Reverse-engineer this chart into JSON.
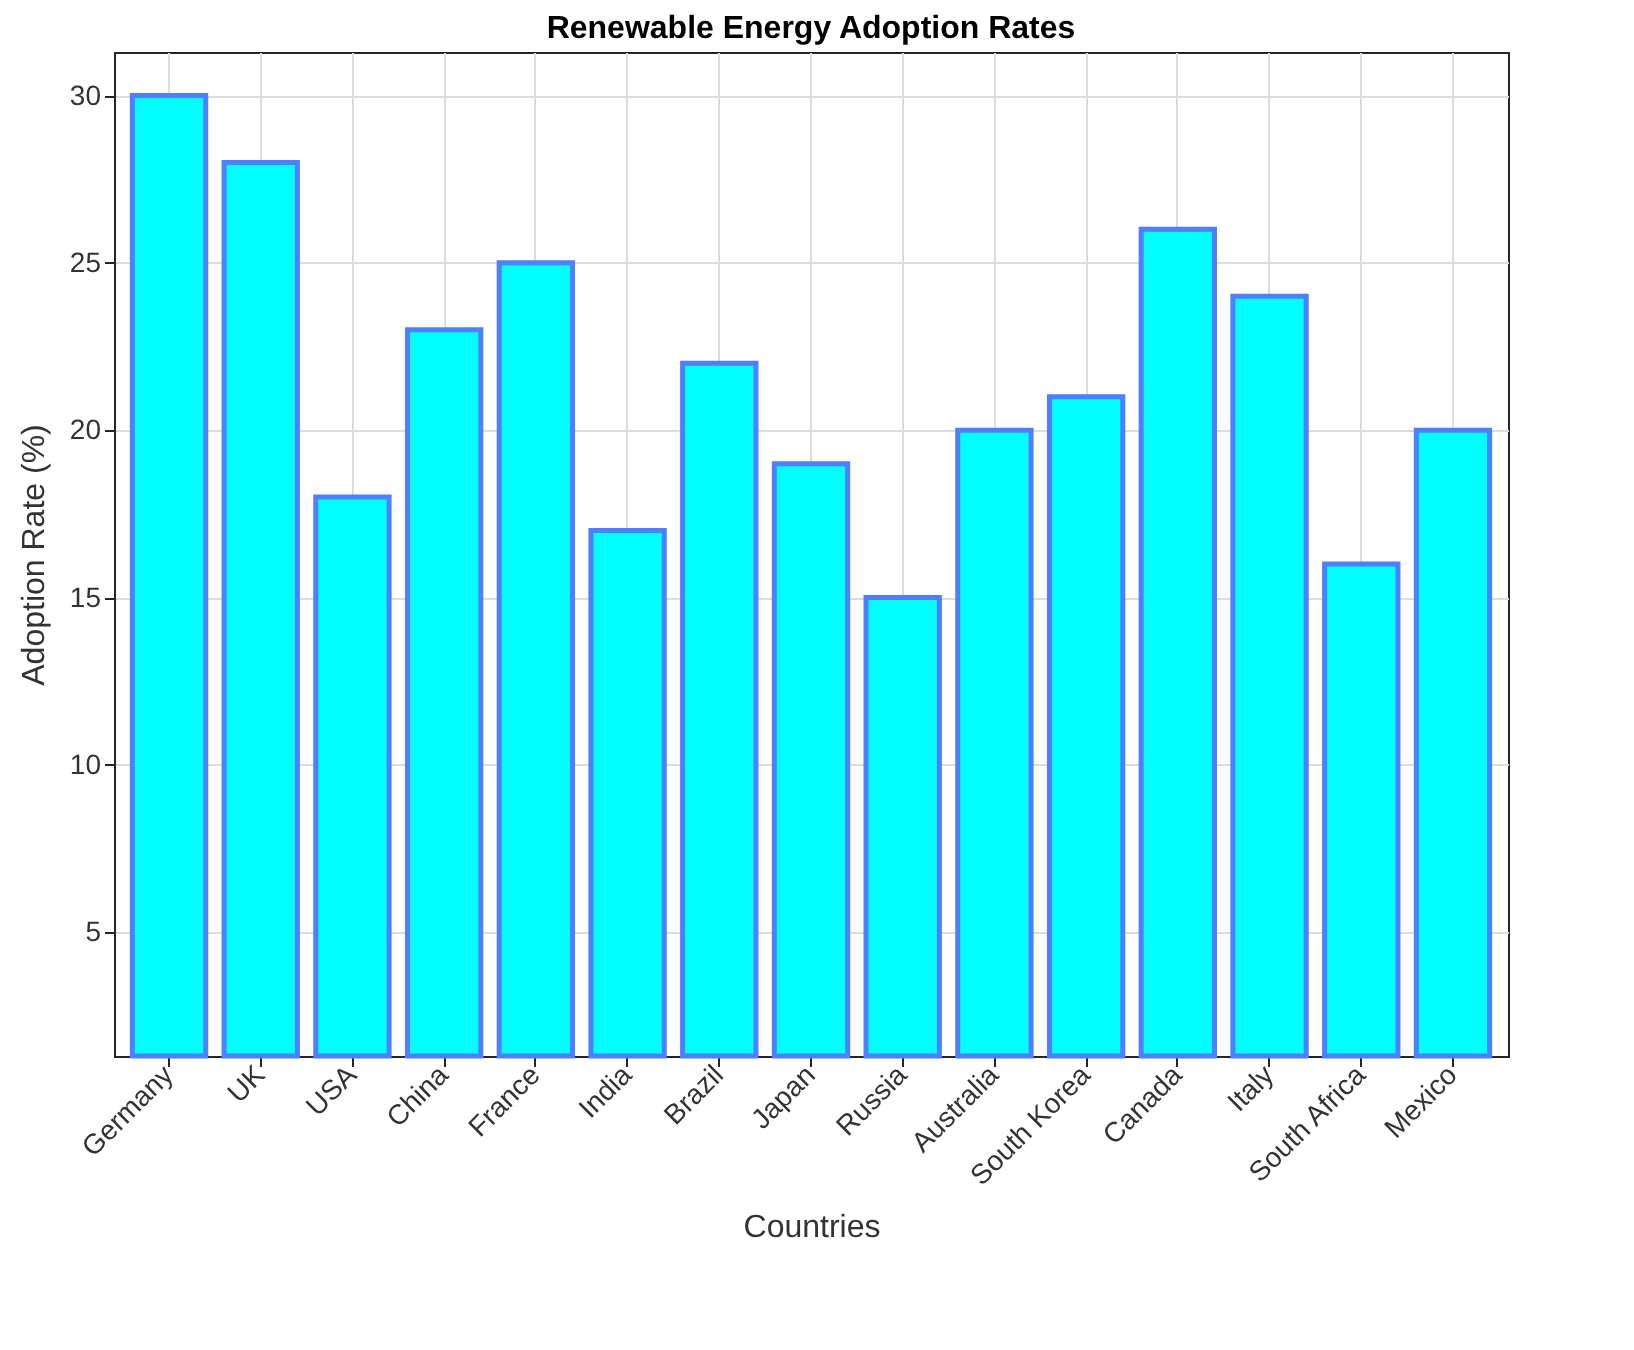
{
  "chart_data": {
    "type": "bar",
    "title": "Renewable Energy Adoption Rates",
    "xlabel": "Countries",
    "ylabel": "Adoption Rate (%)",
    "categories": [
      "Germany",
      "UK",
      "USA",
      "China",
      "France",
      "India",
      "Brazil",
      "Japan",
      "Russia",
      "Australia",
      "South Korea",
      "Canada",
      "Italy",
      "South Africa",
      "Mexico"
    ],
    "values": [
      30,
      28,
      18,
      23,
      25,
      17,
      22,
      19,
      15,
      20,
      21,
      26,
      24,
      16,
      20
    ],
    "color": "#00ffff",
    "ylim": [
      1.3,
      31.3
    ],
    "yticks": [
      5,
      10,
      15,
      20,
      25,
      30
    ],
    "grid": true
  }
}
